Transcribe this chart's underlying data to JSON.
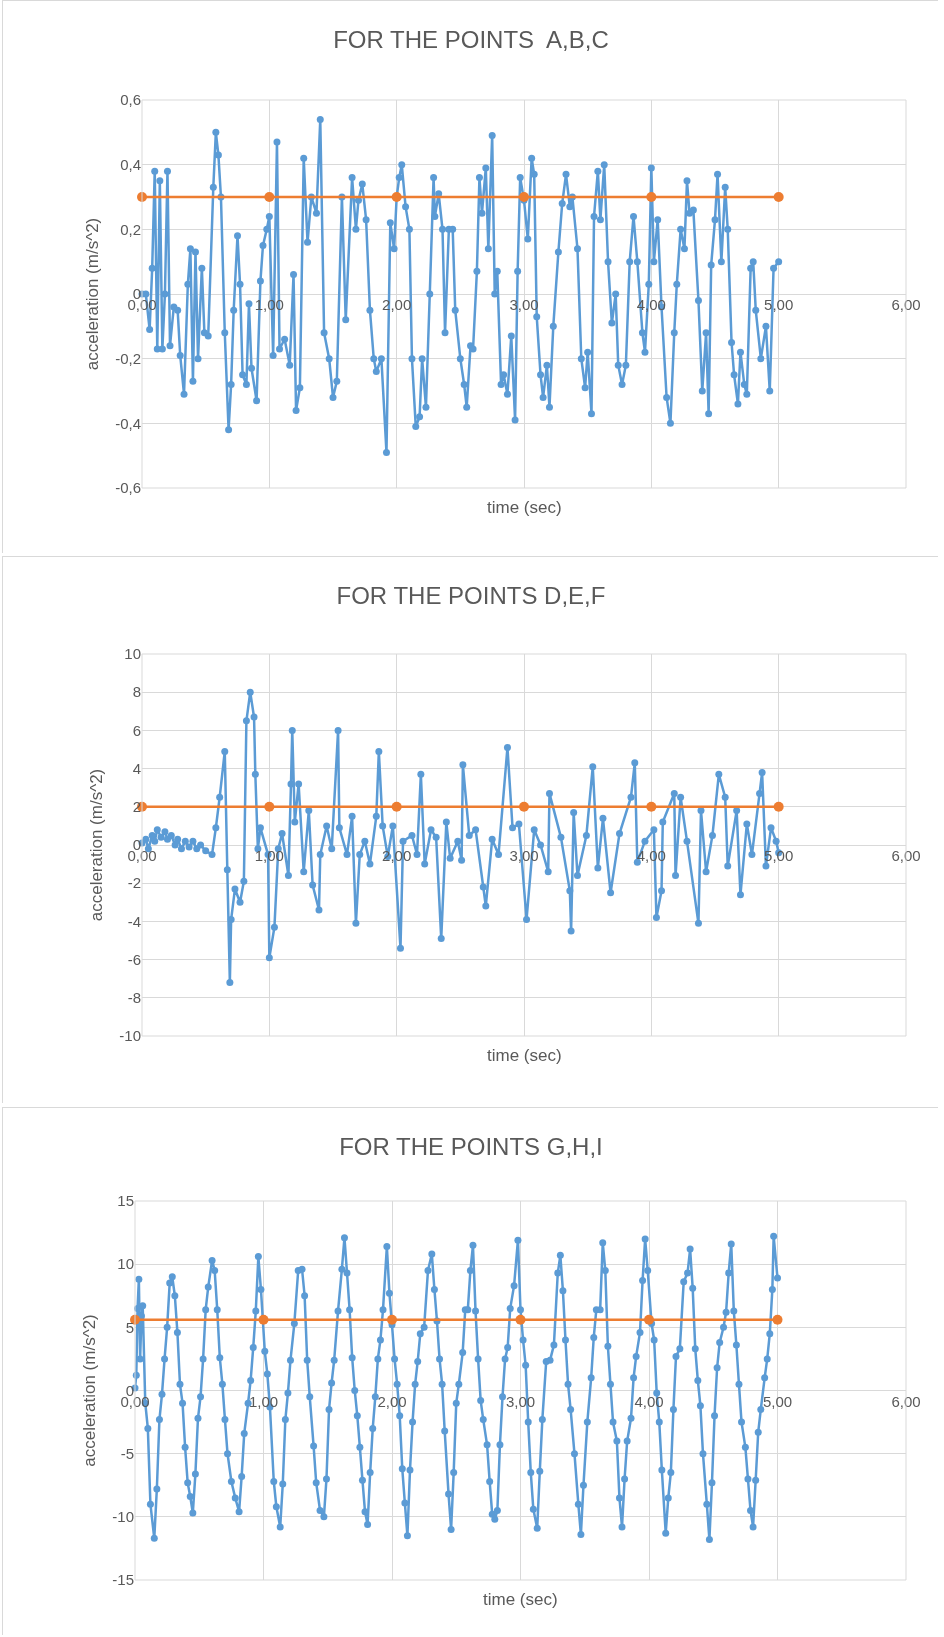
{
  "chart_data": [
    {
      "type": "line",
      "title": "FOR THE POINTS  A,B,C",
      "xlabel": "time (sec)",
      "ylabel": "acceleration (m/s^2)",
      "marker": "circle",
      "grid": true,
      "xlim": [
        0,
        6
      ],
      "xticks": [
        {
          "value": 0,
          "label": "0,00"
        },
        {
          "value": 1,
          "label": "1,00"
        },
        {
          "value": 2,
          "label": "2,00"
        },
        {
          "value": 3,
          "label": "3,00"
        },
        {
          "value": 4,
          "label": "4,00"
        },
        {
          "value": 5,
          "label": "5,00"
        },
        {
          "value": 6,
          "label": "6,00"
        }
      ],
      "ylim": [
        -0.6,
        0.6
      ],
      "yticks": [
        {
          "value": -0.6,
          "label": "-0,6"
        },
        {
          "value": -0.4,
          "label": "-0,4"
        },
        {
          "value": -0.2,
          "label": "-0,2"
        },
        0,
        {
          "value": 0.2,
          "label": "0,2"
        },
        {
          "value": 0.4,
          "label": "0,4"
        },
        {
          "value": 0.6,
          "label": "0,6"
        }
      ],
      "series": [
        {
          "color": "#5b9bd5",
          "x": [
            0,
            0.03,
            0.06,
            0.08,
            0.1,
            0.12,
            0.14,
            0.16,
            0.18,
            0.2,
            0.22,
            0.25,
            0.28,
            0.3,
            0.33,
            0.36,
            0.38,
            0.4,
            0.42,
            0.44,
            0.47,
            0.49,
            0.52,
            0.56,
            0.58,
            0.6,
            0.62,
            0.65,
            0.68,
            0.7,
            0.72,
            0.75,
            0.77,
            0.79,
            0.82,
            0.84,
            0.86,
            0.9,
            0.93,
            0.95,
            0.98,
            1.0,
            1.03,
            1.06,
            1.08,
            1.12,
            1.16,
            1.19,
            1.21,
            1.24,
            1.27,
            1.3,
            1.33,
            1.37,
            1.4,
            1.43,
            1.47,
            1.5,
            1.53,
            1.57,
            1.6,
            1.65,
            1.68,
            1.7,
            1.73,
            1.76,
            1.79,
            1.82,
            1.84,
            1.88,
            1.92,
            1.95,
            1.98,
            2.0,
            2.02,
            2.04,
            2.07,
            2.1,
            2.12,
            2.15,
            2.18,
            2.2,
            2.23,
            2.26,
            2.29,
            2.3,
            2.33,
            2.36,
            2.38,
            2.41,
            2.44,
            2.46,
            2.5,
            2.53,
            2.55,
            2.58,
            2.6,
            2.63,
            2.65,
            2.67,
            2.7,
            2.72,
            2.75,
            2.77,
            2.79,
            2.82,
            2.84,
            2.87,
            2.9,
            2.93,
            2.95,
            2.97,
            3.0,
            3.03,
            3.06,
            3.08,
            3.1,
            3.13,
            3.15,
            3.18,
            3.2,
            3.23,
            3.27,
            3.3,
            3.33,
            3.36,
            3.38,
            3.42,
            3.45,
            3.48,
            3.5,
            3.53,
            3.55,
            3.58,
            3.6,
            3.63,
            3.66,
            3.69,
            3.72,
            3.74,
            3.77,
            3.8,
            3.83,
            3.86,
            3.89,
            3.93,
            3.95,
            3.98,
            4.0,
            4.02,
            4.05,
            4.08,
            4.12,
            4.15,
            4.18,
            4.2,
            4.23,
            4.26,
            4.28,
            4.3,
            4.33,
            4.37,
            4.4,
            4.43,
            4.45,
            4.47,
            4.5,
            4.52,
            4.55,
            4.58,
            4.6,
            4.63,
            4.65,
            4.68,
            4.7,
            4.73,
            4.75,
            4.78,
            4.8,
            4.82,
            4.86,
            4.9,
            4.93,
            4.96,
            5.0
          ],
          "values": [
            0,
            0,
            -0.11,
            0.08,
            0.38,
            -0.17,
            0.35,
            -0.17,
            0,
            0.38,
            -0.16,
            -0.04,
            -0.05,
            -0.19,
            -0.31,
            0.03,
            0.14,
            -0.27,
            0.13,
            -0.2,
            0.08,
            -0.12,
            -0.13,
            0.33,
            0.5,
            0.43,
            0.3,
            -0.12,
            -0.42,
            -0.28,
            -0.05,
            0.18,
            0.03,
            -0.25,
            -0.28,
            -0.03,
            -0.23,
            -0.33,
            0.04,
            0.15,
            0.2,
            0.24,
            -0.19,
            0.47,
            -0.17,
            -0.14,
            -0.22,
            0.06,
            -0.36,
            -0.29,
            0.42,
            0.16,
            0.3,
            0.25,
            0.54,
            -0.12,
            -0.2,
            -0.32,
            -0.27,
            0.3,
            -0.08,
            0.36,
            0.2,
            0.29,
            0.34,
            0.23,
            -0.05,
            -0.2,
            -0.24,
            -0.2,
            -0.49,
            0.22,
            0.14,
            0.3,
            0.36,
            0.4,
            0.27,
            0.2,
            -0.2,
            -0.41,
            -0.38,
            -0.2,
            -0.35,
            0,
            0.36,
            0.24,
            0.31,
            0.2,
            -0.12,
            0.2,
            0.2,
            -0.05,
            -0.2,
            -0.28,
            -0.35,
            -0.16,
            -0.17,
            0.07,
            0.36,
            0.25,
            0.39,
            0.14,
            0.49,
            0,
            0.07,
            -0.28,
            -0.25,
            -0.31,
            -0.13,
            -0.39,
            0.07,
            0.36,
            0.29,
            0.17,
            0.42,
            0.37,
            -0.07,
            -0.25,
            -0.32,
            -0.22,
            -0.35,
            -0.1,
            0.13,
            0.28,
            0.37,
            0.27,
            0.3,
            0.14,
            -0.2,
            -0.29,
            -0.18,
            -0.37,
            0.24,
            0.38,
            0.23,
            0.4,
            0.1,
            -0.09,
            0,
            -0.22,
            -0.28,
            -0.22,
            0.1,
            0.24,
            0.1,
            -0.12,
            -0.18,
            0.03,
            0.39,
            0.1,
            0.23,
            -0.04,
            -0.32,
            -0.4,
            -0.12,
            0.03,
            0.2,
            0.14,
            0.35,
            0.25,
            0.26,
            -0.02,
            -0.3,
            -0.12,
            -0.37,
            0.09,
            0.23,
            0.37,
            0.1,
            0.33,
            0.2,
            -0.15,
            -0.25,
            -0.34,
            -0.18,
            -0.28,
            -0.31,
            0.08,
            0.1,
            -0.05,
            -0.2,
            -0.1,
            -0.3,
            0.08,
            0.1
          ]
        },
        {
          "color": "#ed7d31",
          "x": [
            0,
            1,
            2,
            3,
            4,
            5
          ],
          "values": [
            0.3,
            0.3,
            0.3,
            0.3,
            0.3,
            0.3
          ]
        }
      ]
    },
    {
      "type": "line",
      "title": "FOR THE POINTS D,E,F",
      "xlabel": "time (sec)",
      "ylabel": "acceleration (m/s^2)",
      "marker": "circle",
      "grid": true,
      "xlim": [
        0,
        6
      ],
      "xticks": [
        {
          "value": 0,
          "label": "0,00"
        },
        {
          "value": 1,
          "label": "1,00"
        },
        {
          "value": 2,
          "label": "2,00"
        },
        {
          "value": 3,
          "label": "3,00"
        },
        {
          "value": 4,
          "label": "4,00"
        },
        {
          "value": 5,
          "label": "5,00"
        },
        {
          "value": 6,
          "label": "6,00"
        }
      ],
      "ylim": [
        -10,
        10
      ],
      "yticks": [
        -10,
        -8,
        -6,
        -4,
        -2,
        0,
        2,
        4,
        6,
        8,
        10
      ],
      "series": [
        {
          "color": "#5b9bd5",
          "x": [
            0,
            0.03,
            0.05,
            0.08,
            0.1,
            0.12,
            0.15,
            0.18,
            0.2,
            0.23,
            0.26,
            0.28,
            0.31,
            0.34,
            0.37,
            0.4,
            0.43,
            0.46,
            0.5,
            0.55,
            0.58,
            0.61,
            0.65,
            0.67,
            0.69,
            0.7,
            0.73,
            0.77,
            0.8,
            0.82,
            0.85,
            0.88,
            0.89,
            0.91,
            0.93,
            0.99,
            1.0,
            1.04,
            1.07,
            1.1,
            1.15,
            1.17,
            1.18,
            1.2,
            1.23,
            1.27,
            1.31,
            1.34,
            1.39,
            1.4,
            1.45,
            1.49,
            1.54,
            1.55,
            1.61,
            1.65,
            1.68,
            1.71,
            1.75,
            1.79,
            1.84,
            1.86,
            1.89,
            1.93,
            1.97,
            2.03,
            2.05,
            2.12,
            2.16,
            2.19,
            2.22,
            2.27,
            2.31,
            2.35,
            2.39,
            2.42,
            2.48,
            2.51,
            2.52,
            2.57,
            2.62,
            2.68,
            2.7,
            2.75,
            2.8,
            2.87,
            2.91,
            2.96,
            3.02,
            3.08,
            3.13,
            3.19,
            3.2,
            3.29,
            3.36,
            3.37,
            3.39,
            3.42,
            3.49,
            3.54,
            3.58,
            3.62,
            3.68,
            3.75,
            3.84,
            3.87,
            3.89,
            3.95,
            4.02,
            4.04,
            4.08,
            4.09,
            4.18,
            4.19,
            4.23,
            4.28,
            4.37,
            4.39,
            4.43,
            4.48,
            4.53,
            4.58,
            4.6,
            4.67,
            4.7,
            4.75,
            4.79,
            4.85,
            4.87,
            4.9,
            4.94,
            4.98,
            5.0
          ],
          "values": [
            0.1,
            0.3,
            -0.2,
            0.5,
            0.2,
            0.8,
            0.4,
            0.7,
            0.3,
            0.5,
            0,
            0.3,
            -0.2,
            0.2,
            -0.1,
            0.2,
            -0.2,
            0,
            -0.3,
            -0.5,
            0.9,
            2.5,
            4.9,
            -1.3,
            -7.2,
            -3.9,
            -2.3,
            -3,
            -1.9,
            6.5,
            8,
            6.7,
            3.7,
            -0.2,
            0.9,
            -0.5,
            -5.9,
            -4.3,
            -0.2,
            0.6,
            -1.6,
            3.2,
            6,
            1.2,
            3.2,
            -1.4,
            1.8,
            -2.1,
            -3.4,
            -0.5,
            1,
            -0.2,
            6,
            0.9,
            -0.5,
            1.5,
            -4.1,
            -0.5,
            0.2,
            -1,
            1.5,
            4.9,
            1,
            -0.6,
            1,
            -5.4,
            0.2,
            0.5,
            -0.5,
            3.7,
            -1,
            0.8,
            0.4,
            -4.9,
            1.2,
            -0.7,
            0.2,
            -0.8,
            4.2,
            0.5,
            0.8,
            -2.2,
            -3.2,
            0.3,
            -0.5,
            5.1,
            0.9,
            1.1,
            -3.9,
            0.8,
            0,
            -1.4,
            2.7,
            0.4,
            -2.4,
            -4.5,
            1.7,
            -1.6,
            0.5,
            4.1,
            -1.2,
            1.4,
            -2.5,
            0.6,
            2.5,
            4.3,
            -0.9,
            0.2,
            0.8,
            -3.8,
            -2.4,
            1.2,
            2.7,
            -1.6,
            2.5,
            0.2,
            -4.1,
            1.8,
            -1.4,
            0.5,
            3.7,
            2.5,
            -1.1,
            1.8,
            -2.6,
            1.1,
            -0.5,
            2.7,
            3.8,
            -1.1,
            0.9,
            0.2,
            -0.4
          ]
        },
        {
          "color": "#ed7d31",
          "x": [
            0,
            1,
            2,
            3,
            4,
            5
          ],
          "values": [
            2,
            2,
            2,
            2,
            2,
            2
          ]
        }
      ]
    },
    {
      "type": "line",
      "title": "FOR THE POINTS G,H,I",
      "xlabel": "time (sec)",
      "ylabel": "acceleration (m/s^2)",
      "marker": "circle",
      "grid": true,
      "xlim": [
        0,
        6
      ],
      "xticks": [
        {
          "value": 0,
          "label": "0,00"
        },
        {
          "value": 1,
          "label": "1,00"
        },
        {
          "value": 2,
          "label": "2,00"
        },
        {
          "value": 3,
          "label": "3,00"
        },
        {
          "value": 4,
          "label": "4,00"
        },
        {
          "value": 5,
          "label": "5,00"
        },
        {
          "value": 6,
          "label": "6,00"
        }
      ],
      "ylim": [
        -15,
        15
      ],
      "yticks": [
        -15,
        -10,
        -5,
        0,
        5,
        10,
        15
      ],
      "series": [
        {
          "color": "#5b9bd5",
          "x": [
            0,
            0.01,
            0.02,
            0.03,
            0.04,
            0.05,
            0.06,
            0.08,
            0.1,
            0.12,
            0.15,
            0.17,
            0.19,
            0.21,
            0.23,
            0.25,
            0.27,
            0.29,
            0.31,
            0.33,
            0.35,
            0.37,
            0.39,
            0.41,
            0.43,
            0.45,
            0.47,
            0.49,
            0.51,
            0.53,
            0.55,
            0.57,
            0.6,
            0.62,
            0.64,
            0.66,
            0.68,
            0.7,
            0.72,
            0.75,
            0.78,
            0.81,
            0.83,
            0.85,
            0.88,
            0.9,
            0.92,
            0.94,
            0.96,
            0.98,
            1.01,
            1.03,
            1.05,
            1.08,
            1.1,
            1.13,
            1.15,
            1.17,
            1.19,
            1.21,
            1.24,
            1.27,
            1.3,
            1.32,
            1.34,
            1.36,
            1.39,
            1.41,
            1.44,
            1.47,
            1.49,
            1.51,
            1.53,
            1.55,
            1.58,
            1.61,
            1.63,
            1.65,
            1.67,
            1.69,
            1.71,
            1.73,
            1.75,
            1.77,
            1.79,
            1.81,
            1.83,
            1.85,
            1.87,
            1.89,
            1.91,
            1.93,
            1.96,
            1.98,
            2.0,
            2.02,
            2.04,
            2.06,
            2.08,
            2.1,
            2.12,
            2.14,
            2.16,
            2.18,
            2.2,
            2.22,
            2.25,
            2.28,
            2.31,
            2.33,
            2.35,
            2.37,
            2.39,
            2.41,
            2.44,
            2.46,
            2.48,
            2.5,
            2.52,
            2.55,
            2.57,
            2.59,
            2.61,
            2.63,
            2.65,
            2.67,
            2.69,
            2.71,
            2.74,
            2.76,
            2.78,
            2.8,
            2.82,
            2.84,
            2.86,
            2.88,
            2.9,
            2.92,
            2.95,
            2.98,
            3.0,
            3.02,
            3.04,
            3.06,
            3.08,
            3.1,
            3.13,
            3.15,
            3.17,
            3.2,
            3.23,
            3.26,
            3.29,
            3.31,
            3.33,
            3.35,
            3.37,
            3.39,
            3.42,
            3.45,
            3.47,
            3.49,
            3.52,
            3.55,
            3.57,
            3.59,
            3.62,
            3.64,
            3.66,
            3.68,
            3.7,
            3.72,
            3.75,
            3.77,
            3.79,
            3.81,
            3.83,
            3.86,
            3.88,
            3.9,
            3.93,
            3.95,
            3.97,
            3.99,
            4.02,
            4.04,
            4.06,
            4.08,
            4.1,
            4.13,
            4.15,
            4.17,
            4.19,
            4.21,
            4.24,
            4.27,
            4.3,
            4.32,
            4.34,
            4.36,
            4.38,
            4.4,
            4.42,
            4.45,
            4.47,
            4.49,
            4.51,
            4.53,
            4.55,
            4.58,
            4.6,
            4.62,
            4.64,
            4.66,
            4.68,
            4.7,
            4.72,
            4.75,
            4.77,
            4.79,
            4.81,
            4.83,
            4.85,
            4.87,
            4.9,
            4.92,
            4.94,
            4.96,
            4.97,
            5.0
          ],
          "values": [
            0.2,
            1.2,
            6.5,
            8.8,
            2.5,
            5.9,
            6.7,
            -1,
            -3,
            -9,
            -11.7,
            -7.8,
            -2.3,
            -0.3,
            2.5,
            5,
            8.5,
            9,
            7.5,
            4.6,
            0.5,
            -1,
            -4.5,
            -7.3,
            -8.4,
            -9.7,
            -6.6,
            -2.2,
            -0.5,
            2.5,
            6.4,
            8.2,
            10.3,
            9.5,
            6.4,
            2.6,
            0.5,
            -2.3,
            -5,
            -7.2,
            -8.5,
            -9.6,
            -6.8,
            -3.4,
            -1,
            0.8,
            3.4,
            6.3,
            10.6,
            8,
            3.1,
            1.3,
            -1.3,
            -7.2,
            -9.2,
            -10.8,
            -7.4,
            -2.3,
            -0.2,
            2.4,
            5.3,
            9.5,
            9.6,
            7.5,
            2.4,
            -0.5,
            -4.4,
            -7.3,
            -9.5,
            -10,
            -7,
            -1.5,
            0.6,
            2.4,
            6.3,
            9.6,
            12.1,
            9.3,
            6.4,
            2.6,
            0,
            -2,
            -4.5,
            -7.1,
            -9.6,
            -10.6,
            -6.5,
            -3,
            -0.5,
            2.5,
            4,
            6.4,
            11.4,
            7.7,
            5.2,
            2.5,
            0.5,
            -2,
            -6.2,
            -8.9,
            -11.5,
            -6.3,
            -2.5,
            0.5,
            2.3,
            4.5,
            5,
            9.5,
            10.8,
            8,
            5.5,
            2.5,
            0.5,
            -3.2,
            -8.2,
            -11,
            -6.5,
            -1,
            0.5,
            3,
            6.4,
            6.4,
            9.5,
            11.5,
            6.3,
            2.5,
            -0.8,
            -2.3,
            -4.3,
            -7.2,
            -9.8,
            -10.2,
            -9.5,
            -4.3,
            -0.5,
            2.5,
            3.4,
            6.5,
            8.3,
            11.9,
            6.4,
            4,
            2,
            -2.5,
            -6.5,
            -9.4,
            -10.9,
            -6.4,
            -2.3,
            2.3,
            2.4,
            3.6,
            9.3,
            10.7,
            7.9,
            4,
            0.5,
            -1.5,
            -5,
            -9,
            -11.4,
            -7.5,
            -2.5,
            1,
            4.2,
            6.4,
            6.4,
            11.7,
            9.5,
            3.5,
            0.5,
            -2.5,
            -4,
            -8.5,
            -10.8,
            -7,
            -4,
            -2.2,
            1,
            2.7,
            4.6,
            8.7,
            12,
            9.5,
            5.3,
            4,
            -0.2,
            -2.5,
            -6.3,
            -11.3,
            -8.5,
            -6.5,
            -1.5,
            2.7,
            3.3,
            8.6,
            9.3,
            11.2,
            8.1,
            3.3,
            0.8,
            -1.2,
            -5,
            -9,
            -11.8,
            -7.3,
            -2,
            1.8,
            3.8,
            5,
            6.2,
            9.3,
            11.6,
            6.3,
            3.6,
            0.5,
            -2.5,
            -4.5,
            -7,
            -9.5,
            -10.8,
            -7.1,
            -3.3,
            -1.5,
            1,
            2.5,
            4.5,
            8,
            12.2,
            8.9
          ]
        },
        {
          "color": "#ed7d31",
          "x": [
            0,
            1,
            2,
            3,
            4,
            5
          ],
          "values": [
            5.6,
            5.6,
            5.6,
            5.6,
            5.6,
            5.6
          ]
        }
      ]
    }
  ]
}
